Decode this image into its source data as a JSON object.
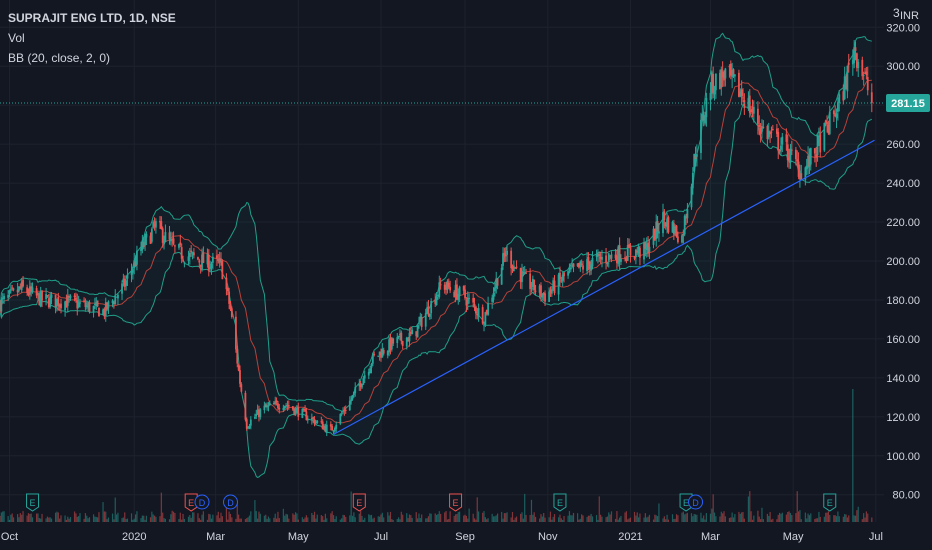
{
  "legend": {
    "symbol_line": "SUPRAJIT ENG LTD, 1D, NSE",
    "vol_label": "Vol",
    "bb_label": "BB (20, close, 2, 0)"
  },
  "price_axis": {
    "currency": "INR",
    "settings_glyph": "3"
  },
  "colors": {
    "background": "#131722",
    "grid": "#1e222d",
    "up": "#26a69a",
    "down": "#ef5350",
    "bb_band": "#1f9e89",
    "bb_basis": "#e04a3f",
    "trendline": "#2962ff",
    "price_tag": "#26a69a",
    "axis_text": "#d1d4dc"
  },
  "chart_data": {
    "type": "candlestick",
    "symbol": "SUPRAJIT ENG LTD",
    "interval": "1D",
    "exchange": "NSE",
    "last_price": 281.15,
    "y_ticks": [
      80.0,
      100.0,
      120.0,
      140.0,
      160.0,
      180.0,
      200.0,
      220.0,
      240.0,
      260.0,
      280.0,
      300.0,
      320.0
    ],
    "ylim": [
      66,
      334
    ],
    "x_ticks": [
      "Oct",
      "2020",
      "Mar",
      "May",
      "Jul",
      "Sep",
      "Nov",
      "2021",
      "Mar",
      "May",
      "Jul"
    ],
    "x_tick_dates": [
      "2019-10-01",
      "2020-01-01",
      "2020-03-01",
      "2020-05-01",
      "2020-07-01",
      "2020-09-01",
      "2020-11-01",
      "2021-01-01",
      "2021-03-01",
      "2021-05-01",
      "2021-07-01"
    ],
    "xlim": [
      "2019-09-24",
      "2021-07-07"
    ],
    "close_anchors": [
      [
        "2019-09-24",
        178
      ],
      [
        "2019-10-10",
        186
      ],
      [
        "2019-10-25",
        180
      ],
      [
        "2019-11-15",
        179
      ],
      [
        "2019-12-10",
        174
      ],
      [
        "2019-12-25",
        188
      ],
      [
        "2020-01-06",
        206
      ],
      [
        "2020-01-17",
        218
      ],
      [
        "2020-02-01",
        205
      ],
      [
        "2020-02-20",
        200
      ],
      [
        "2020-03-05",
        198
      ],
      [
        "2020-03-12",
        175
      ],
      [
        "2020-03-19",
        138
      ],
      [
        "2020-03-24",
        116
      ],
      [
        "2020-04-05",
        124
      ],
      [
        "2020-04-20",
        127
      ],
      [
        "2020-05-08",
        120
      ],
      [
        "2020-05-25",
        113
      ],
      [
        "2020-06-10",
        130
      ],
      [
        "2020-06-25",
        150
      ],
      [
        "2020-07-10",
        158
      ],
      [
        "2020-07-25",
        162
      ],
      [
        "2020-08-15",
        188
      ],
      [
        "2020-08-31",
        182
      ],
      [
        "2020-09-15",
        171
      ],
      [
        "2020-10-01",
        204
      ],
      [
        "2020-10-15",
        190
      ],
      [
        "2020-10-30",
        182
      ],
      [
        "2020-11-15",
        193
      ],
      [
        "2020-12-05",
        200
      ],
      [
        "2020-12-25",
        204
      ],
      [
        "2021-01-12",
        205
      ],
      [
        "2021-01-25",
        222
      ],
      [
        "2021-02-08",
        212
      ],
      [
        "2021-02-18",
        256
      ],
      [
        "2021-03-01",
        290
      ],
      [
        "2021-03-12",
        296
      ],
      [
        "2021-03-25",
        285
      ],
      [
        "2021-04-08",
        268
      ],
      [
        "2021-04-25",
        258
      ],
      [
        "2021-05-08",
        245
      ],
      [
        "2021-05-20",
        260
      ],
      [
        "2021-06-05",
        282
      ],
      [
        "2021-06-15",
        310
      ],
      [
        "2021-06-22",
        296
      ],
      [
        "2021-06-28",
        281.15
      ]
    ],
    "bollinger_bands": {
      "period": 20,
      "source": "close",
      "stddev": 2,
      "offset": 0
    },
    "trendline": {
      "start": [
        "2020-05-27",
        111
      ],
      "end": [
        "2021-06-30",
        262
      ]
    },
    "volume_spike": {
      "date": "2021-06-14"
    },
    "events": [
      {
        "type": "E",
        "date": "2019-10-18",
        "color": "#26a69a"
      },
      {
        "type": "E",
        "date": "2020-02-12",
        "color": "#ef5350"
      },
      {
        "type": "D",
        "date": "2020-02-20",
        "color": "#2962ff"
      },
      {
        "type": "D",
        "date": "2020-03-12",
        "color": "#2962ff"
      },
      {
        "type": "E",
        "date": "2020-06-15",
        "color": "#ef5350"
      },
      {
        "type": "E",
        "date": "2020-08-25",
        "color": "#ef5350"
      },
      {
        "type": "E",
        "date": "2020-11-10",
        "color": "#26a69a"
      },
      {
        "type": "E",
        "date": "2021-02-11",
        "color": "#26a69a"
      },
      {
        "type": "D",
        "date": "2021-02-18",
        "color": "#2962ff"
      },
      {
        "type": "E",
        "date": "2021-05-28",
        "color": "#26a69a"
      }
    ]
  }
}
